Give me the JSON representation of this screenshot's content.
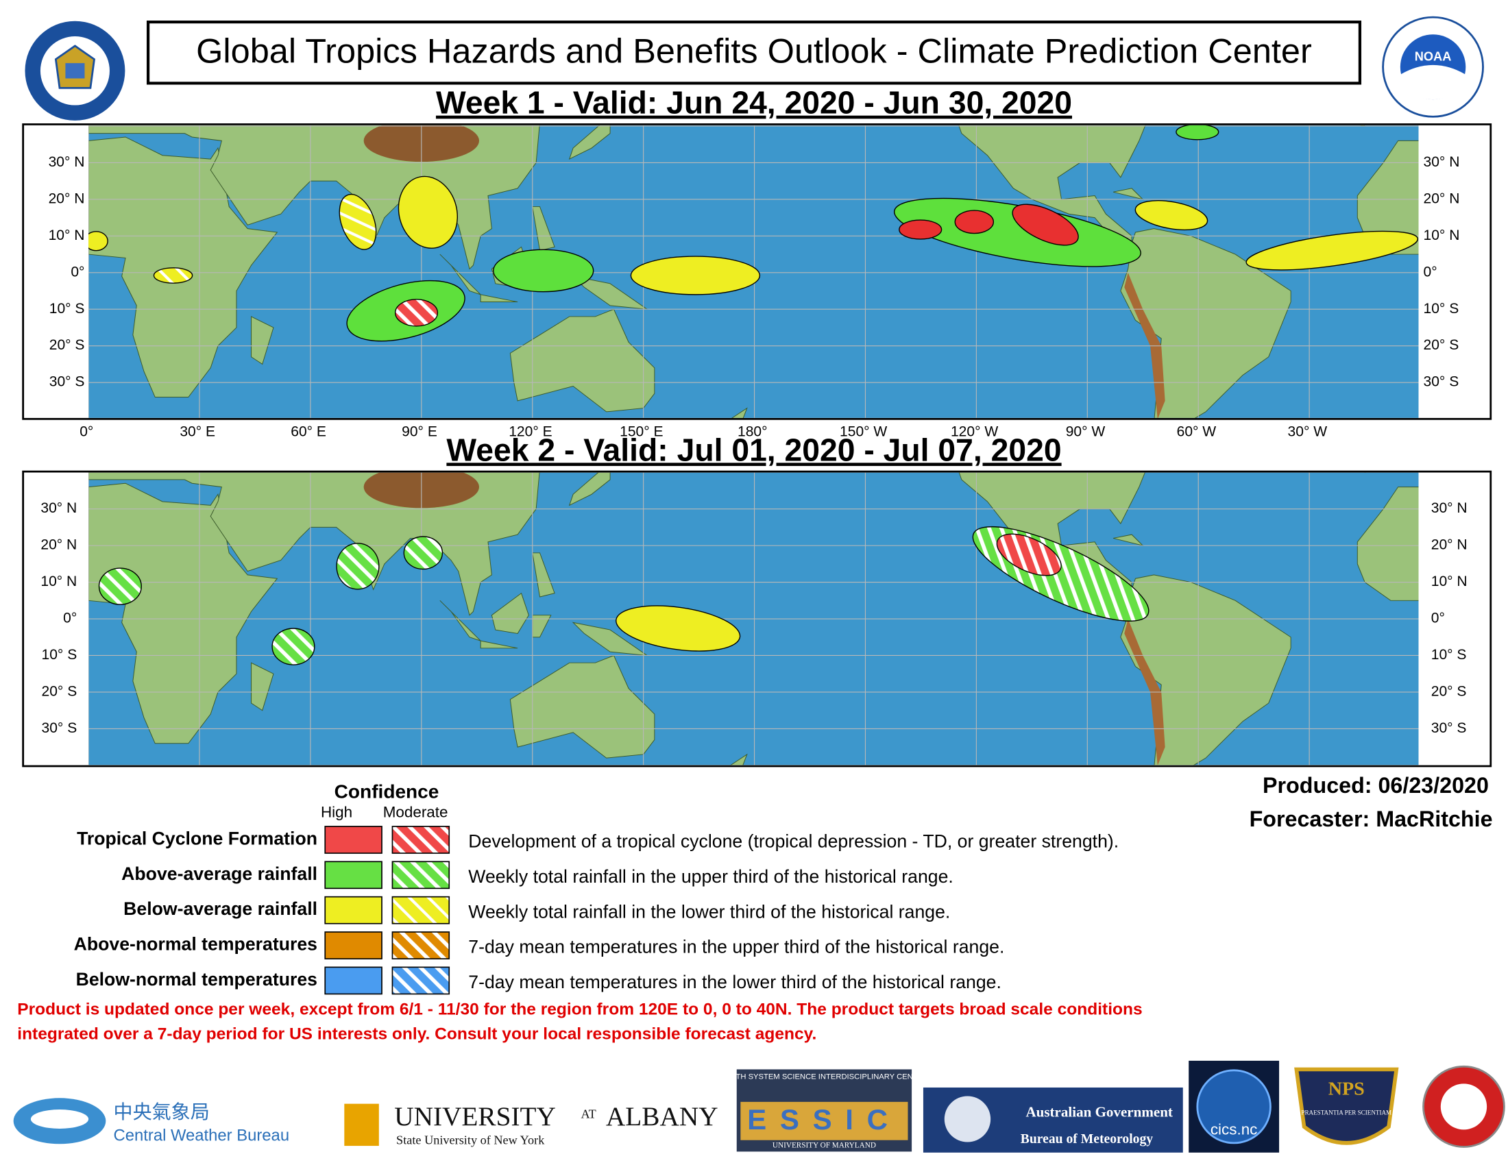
{
  "header": {
    "title": "Global Tropics Hazards and Benefits Outlook - Climate Prediction Center",
    "left_seal": "DEPARTMENT OF COMMERCE · UNITED STATES OF AMERICA",
    "right_seal": "NOAA"
  },
  "week1": {
    "title": "Week 1 - Valid: Jun 24, 2020 - Jun 30, 2020"
  },
  "week2": {
    "title": "Week 2 - Valid: Jul 01, 2020 - Jul 07, 2020"
  },
  "lat_labels": [
    "30° N",
    "20° N",
    "10° N",
    "0°",
    "10° S",
    "20° S",
    "30° S"
  ],
  "lon_labels": [
    "0°",
    "30° E",
    "60° E",
    "90° E",
    "120° E",
    "150° E",
    "180°",
    "150° W",
    "120° W",
    "90° W",
    "60° W",
    "30° W"
  ],
  "produced": "Produced: 06/23/2020",
  "forecaster": "Forecaster: MacRitchie",
  "legend": {
    "confidence": "Confidence",
    "high": "High",
    "moderate": "Moderate",
    "rows": [
      {
        "label": "Tropical Cyclone Formation",
        "description": "Development of a tropical cyclone (tropical depression - TD, or greater strength)."
      },
      {
        "label": "Above-average rainfall",
        "description": "Weekly total rainfall in the upper third of the historical range."
      },
      {
        "label": "Below-average rainfall",
        "description": "Weekly total rainfall in the lower third of the historical range."
      },
      {
        "label": "Above-normal temperatures",
        "description": "7-day mean temperatures in the upper third of the historical range."
      },
      {
        "label": "Below-normal temperatures",
        "description": "7-day mean temperatures in the lower third of the historical range."
      }
    ]
  },
  "disclaimer": [
    "Product is updated once per week, except from 6/1 - 11/30 for the region from 120E to 0, 0 to 40N. The product targets broad scale conditions",
    "integrated over a 7-day period for US interests only.  Consult your local responsible forecast agency."
  ],
  "logos": {
    "cwb_cn": "中央氣象局",
    "cwb_en": "Central Weather Bureau",
    "albany_1": "UNIVERSITY",
    "albany_2": "AT",
    "albany_3": "ALBANY",
    "albany_sub": "State University of New York",
    "essic_top": "EARTH SYSTEM SCIENCE INTERDISCIPLINARY CENTER",
    "essic": "ESSIC",
    "essic_bottom": "UNIVERSITY OF MARYLAND",
    "bom_1": "Australian Government",
    "bom_2": "Bureau of Meteorology",
    "cics": "cics.nc",
    "nps": "NPS",
    "nps_motto": "PRAESTANTIA PER SCIENTIAM"
  }
}
